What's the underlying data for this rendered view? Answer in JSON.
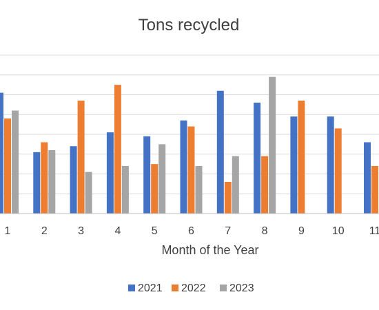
{
  "chart_data": {
    "type": "bar",
    "title": "Tons recycled",
    "xlabel": "Month of the Year",
    "ylabel": "",
    "categories": [
      "1",
      "2",
      "3",
      "4",
      "5",
      "6",
      "7",
      "8",
      "9",
      "10",
      "11"
    ],
    "series": [
      {
        "name": "2021",
        "color": "#4472c4",
        "values": [
          6.1,
          3.1,
          3.4,
          4.1,
          3.9,
          4.7,
          6.2,
          5.6,
          4.9,
          4.9,
          3.6
        ]
      },
      {
        "name": "2022",
        "color": "#ed7d31",
        "values": [
          4.8,
          3.6,
          5.7,
          6.5,
          2.5,
          4.4,
          1.6,
          2.9,
          5.7,
          4.3,
          2.4
        ]
      },
      {
        "name": "2023",
        "color": "#a5a5a5",
        "values": [
          5.2,
          3.2,
          2.1,
          2.4,
          3.5,
          2.4,
          2.9,
          6.9,
          null,
          null,
          null
        ]
      }
    ],
    "ylim": [
      0,
      8
    ],
    "grid": true,
    "legend": "bottom"
  }
}
